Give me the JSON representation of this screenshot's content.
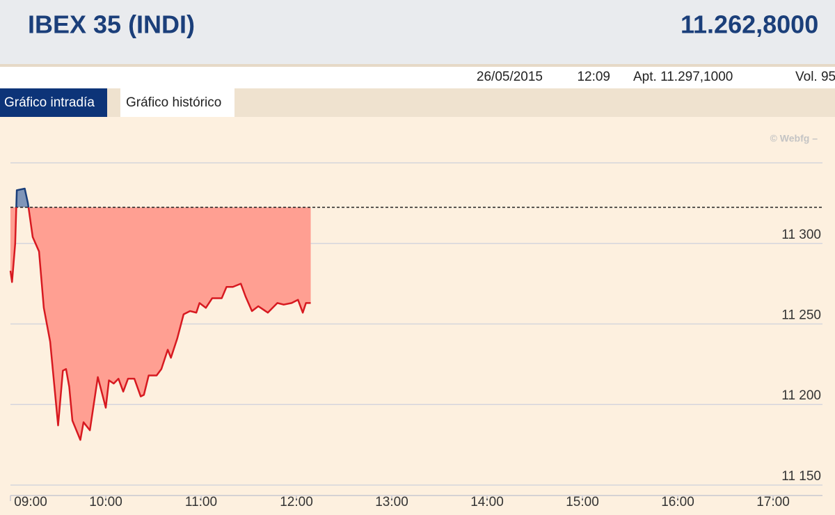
{
  "header": {
    "title": "IBEX 35 (INDI)",
    "price": "11.262,8000",
    "date": "26/05/2015",
    "time": "12:09",
    "open": "Apt. 11.297,1000",
    "volume": "Vol. 95"
  },
  "tabs": [
    "Gráfico intradía",
    "Gráfico histórico"
  ],
  "chart_data": {
    "type": "line",
    "watermark": "© Webfg –",
    "x": [
      "09:00",
      "09:01",
      "09:03",
      "09:04",
      "09:09",
      "09:11",
      "09:14",
      "09:18",
      "09:21",
      "09:25",
      "09:30",
      "09:33",
      "09:35",
      "09:37",
      "09:39",
      "09:44",
      "09:46",
      "09:50",
      "09:55",
      "10:00",
      "10:02",
      "10:05",
      "10:08",
      "10:11",
      "10:14",
      "10:18",
      "10:22",
      "10:24",
      "10:27",
      "10:32",
      "10:35",
      "10:39",
      "10:41",
      "10:45",
      "10:49",
      "10:53",
      "10:57",
      "10:59",
      "11:03",
      "11:07",
      "11:13",
      "11:16",
      "11:20",
      "11:25",
      "11:28",
      "11:32",
      "11:36",
      "11:42",
      "11:48",
      "11:52",
      "11:57",
      "12:01",
      "12:04",
      "12:06",
      "12:09"
    ],
    "values": [
      11283,
      11276,
      11300,
      11333,
      11334,
      11325,
      11304,
      11295,
      11260,
      11239,
      11187,
      11221,
      11222,
      11211,
      11190,
      11178,
      11189,
      11184,
      11217,
      11198,
      11215,
      11213,
      11216,
      11208,
      11216,
      11216,
      11205,
      11206,
      11218,
      11218,
      11222,
      11234,
      11229,
      11241,
      11256,
      11258,
      11257,
      11263,
      11260,
      11266,
      11266,
      11273,
      11273,
      11275,
      11267,
      11258,
      11261,
      11257,
      11263,
      11262,
      11263,
      11265,
      11257,
      11263,
      11263
    ],
    "reference_value": 11322.4,
    "line_color": "#d71920",
    "fill_color": "#ff9f92",
    "above_line_color": "#1b3f7a",
    "above_fill_color": "#7f95b8",
    "xlim": [
      "09:00",
      "17:00"
    ],
    "xticks": [
      "09:00",
      "10:00",
      "11:00",
      "12:00",
      "13:00",
      "14:00",
      "15:00",
      "16:00",
      "17:00"
    ],
    "ylim": [
      11143.5,
      11350
    ],
    "yticks": [
      {
        "value": 11150,
        "label": "11 150"
      },
      {
        "value": 11200,
        "label": "11 200"
      },
      {
        "value": 11250,
        "label": "11 250"
      },
      {
        "value": 11300,
        "label": "11 300"
      }
    ],
    "grid": true
  }
}
